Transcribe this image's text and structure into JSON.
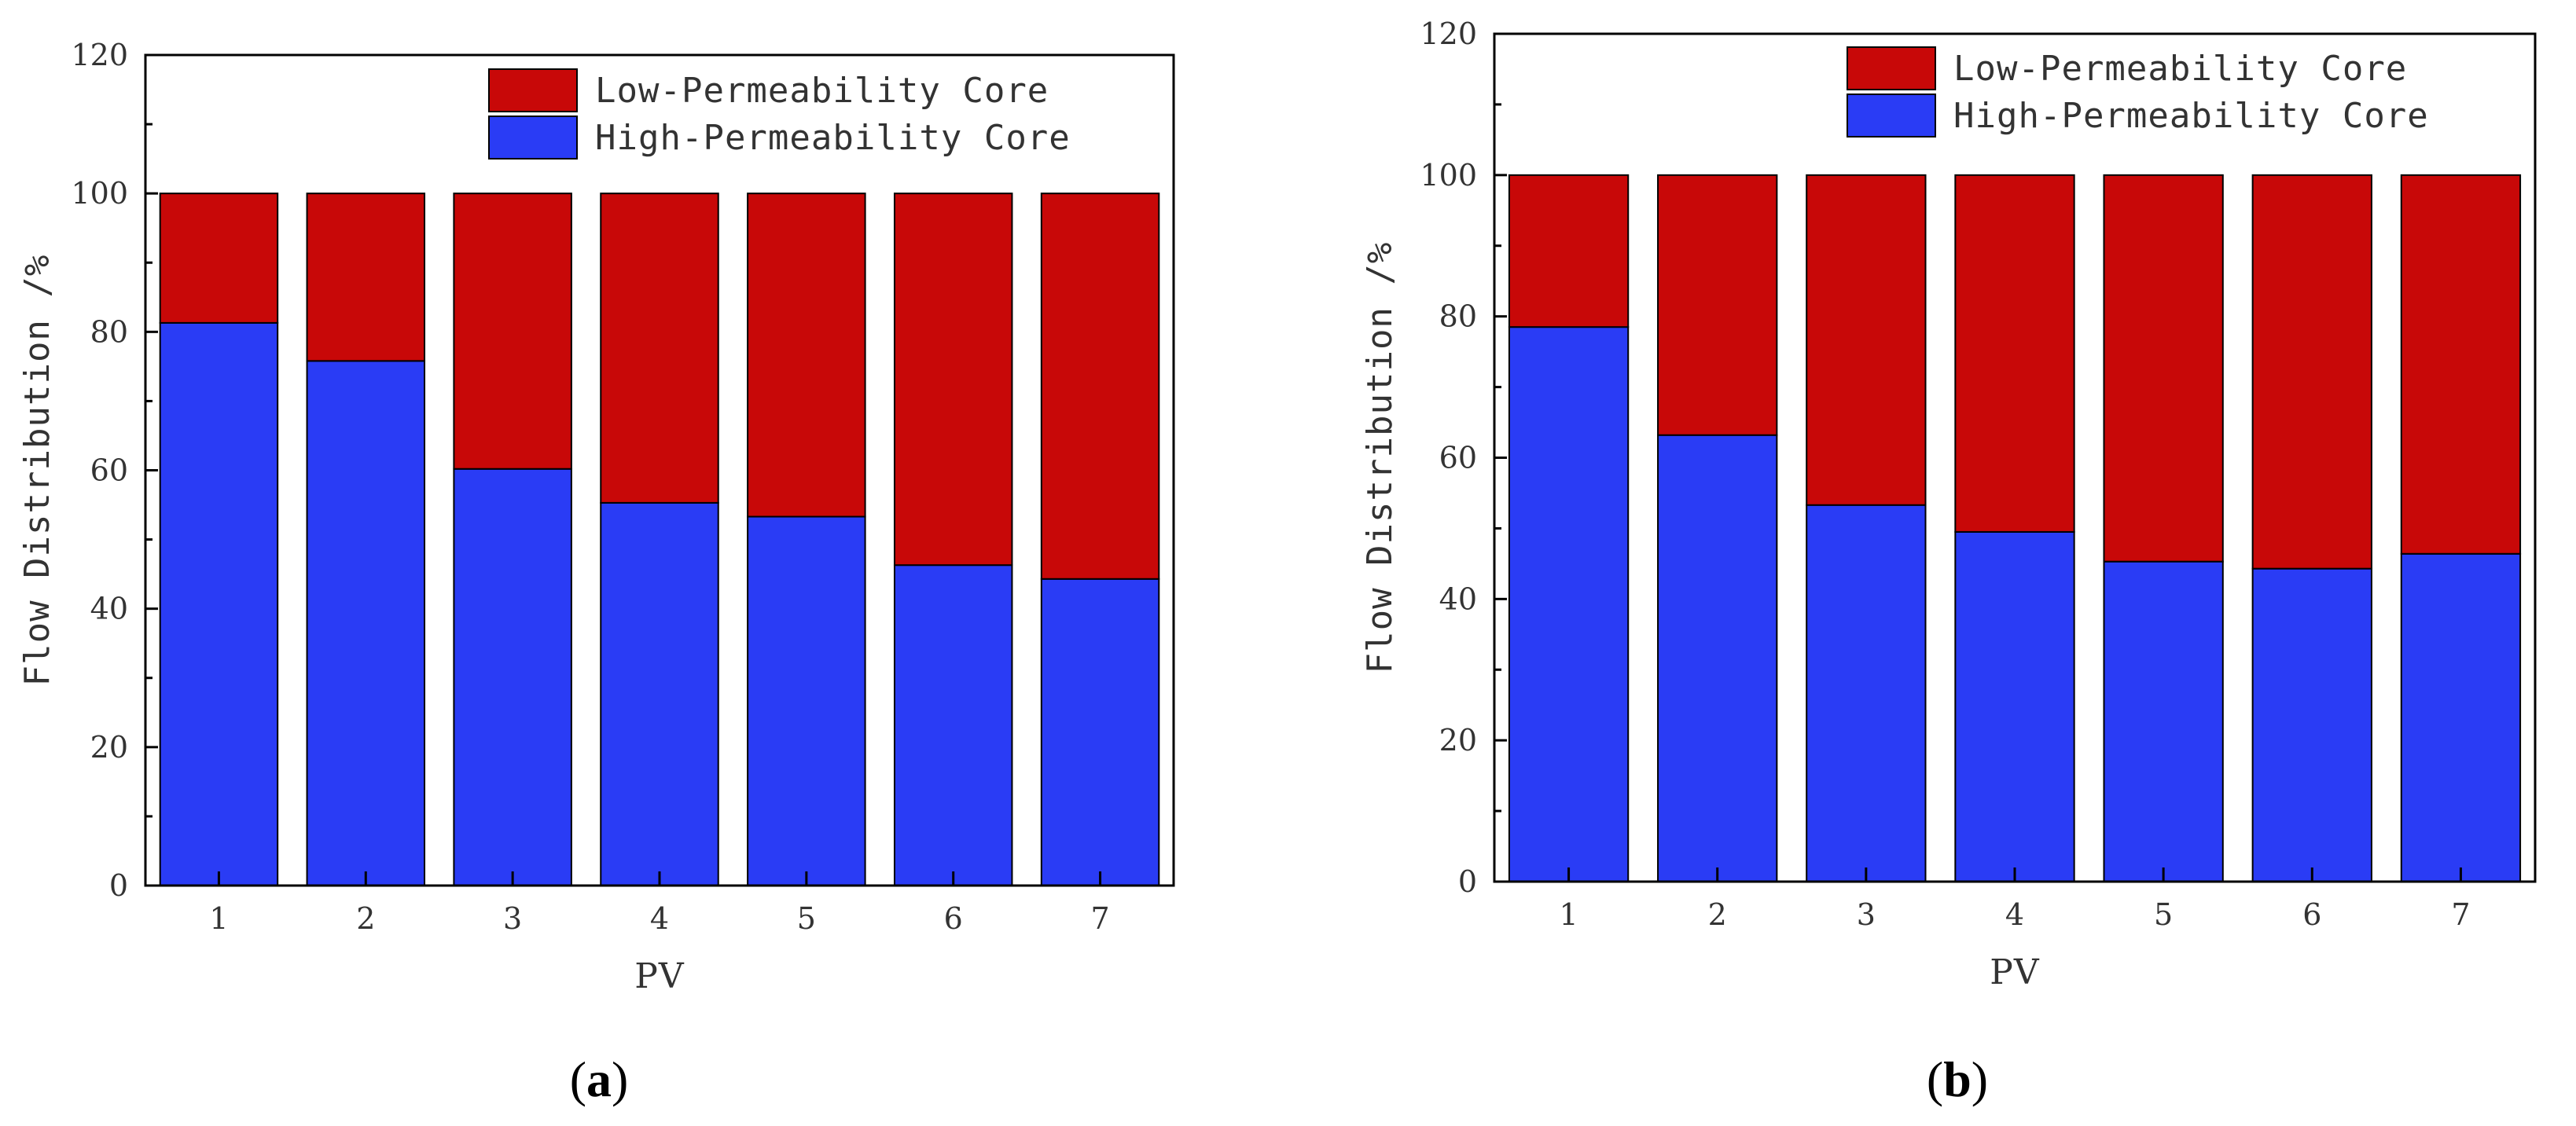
{
  "colors": {
    "low_permeability": "#c80808",
    "high_permeability": "#2a3cf5",
    "axis": "#000000",
    "tick_text": "#333333"
  },
  "chart_data": [
    {
      "type": "bar",
      "stacked": true,
      "panel_label": "(a)",
      "panel_letter": "a",
      "categories": [
        "1",
        "2",
        "3",
        "4",
        "5",
        "6",
        "7"
      ],
      "series": [
        {
          "name": "High-Permeability Core",
          "values": [
            81.3,
            75.8,
            60.2,
            55.3,
            53.3,
            46.3,
            44.3
          ]
        },
        {
          "name": "Low-Permeability Core",
          "values": [
            18.7,
            24.2,
            39.8,
            44.7,
            46.7,
            53.7,
            55.7
          ]
        }
      ],
      "legend": [
        "Low-Permeability Core",
        "High-Permeability Core"
      ],
      "legend_position": "top-right",
      "xlabel": "PV",
      "ylabel": "Flow Distribution /%",
      "ylim": [
        0,
        120
      ],
      "yticks": [
        "0",
        "20",
        "40",
        "60",
        "80",
        "100",
        "120"
      ],
      "grid": false
    },
    {
      "type": "bar",
      "stacked": true,
      "panel_label": "(b)",
      "panel_letter": "b",
      "categories": [
        "1",
        "2",
        "3",
        "4",
        "5",
        "6",
        "7"
      ],
      "series": [
        {
          "name": "High-Permeability Core",
          "values": [
            78.5,
            63.2,
            53.3,
            49.5,
            45.3,
            44.3,
            46.4
          ]
        },
        {
          "name": "Low-Permeability Core",
          "values": [
            21.5,
            36.8,
            46.7,
            50.5,
            54.7,
            55.7,
            53.6
          ]
        }
      ],
      "legend": [
        "Low-Permeability Core",
        "High-Permeability Core"
      ],
      "legend_position": "top-right",
      "xlabel": "PV",
      "ylabel": "Flow Distribution /%",
      "ylim": [
        0,
        120
      ],
      "yticks": [
        "0",
        "20",
        "40",
        "60",
        "80",
        "100",
        "120"
      ],
      "grid": false
    }
  ]
}
